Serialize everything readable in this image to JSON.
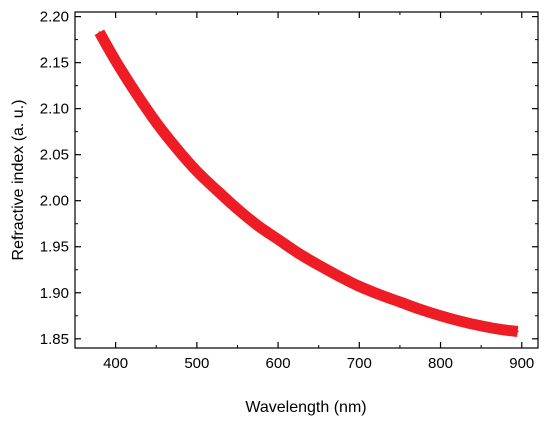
{
  "chart_data": {
    "type": "line",
    "title": "",
    "xlabel": "Wavelength (nm)",
    "ylabel": "Refractive index (a. u.)",
    "xlim": [
      350,
      920
    ],
    "ylim": [
      1.84,
      2.205
    ],
    "x_ticks": [
      400,
      500,
      600,
      700,
      800,
      900
    ],
    "y_ticks": [
      1.85,
      1.9,
      1.95,
      2.0,
      2.05,
      2.1,
      2.15,
      2.2
    ],
    "x_tick_labels": [
      "400",
      "500",
      "600",
      "700",
      "800",
      "900"
    ],
    "y_tick_labels": [
      "1.85",
      "1.90",
      "1.95",
      "2.00",
      "2.05",
      "2.10",
      "2.15",
      "2.20"
    ],
    "grid": false,
    "legend": false,
    "series": [
      {
        "color": "#ee1c24",
        "x": [
          380,
          400,
          425,
          450,
          475,
          500,
          525,
          550,
          575,
          600,
          625,
          650,
          675,
          700,
          725,
          750,
          775,
          800,
          825,
          850,
          875,
          895
        ],
        "y": [
          2.183,
          2.152,
          2.117,
          2.085,
          2.057,
          2.032,
          2.011,
          1.991,
          1.973,
          1.958,
          1.943,
          1.93,
          1.918,
          1.907,
          1.898,
          1.89,
          1.882,
          1.875,
          1.869,
          1.864,
          1.86,
          1.858
        ]
      }
    ]
  }
}
